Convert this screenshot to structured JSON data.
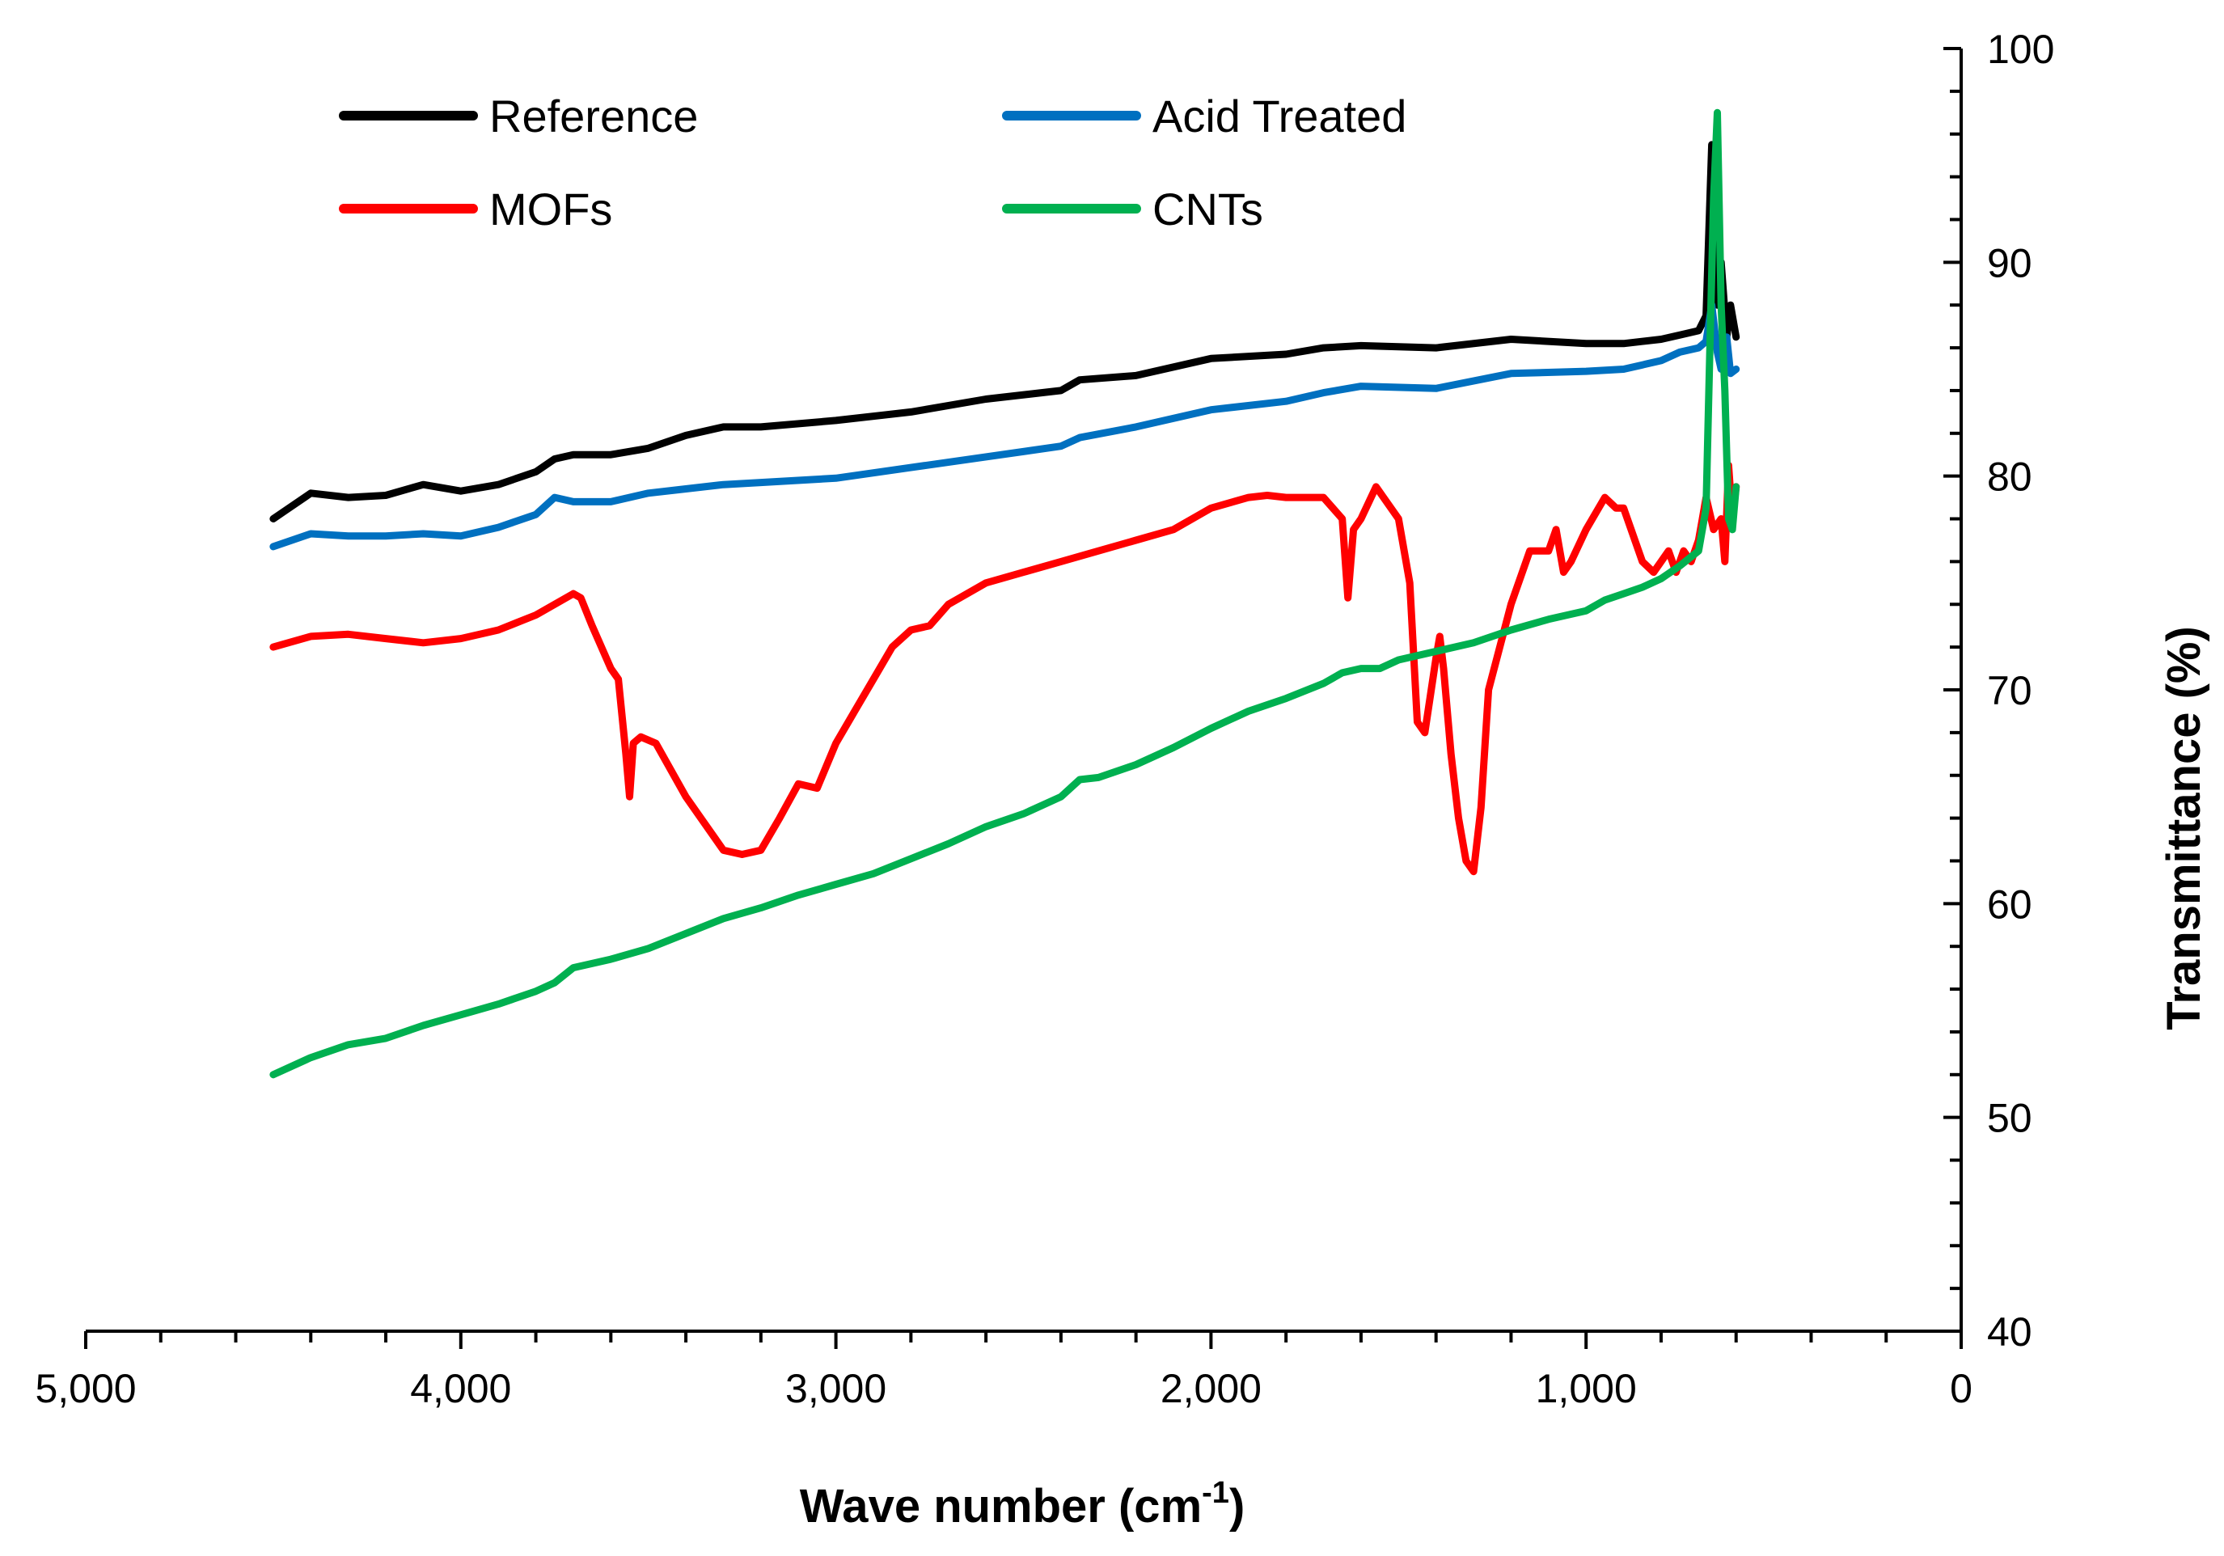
{
  "chart_data": {
    "type": "line",
    "xlabel": "Wave number (cm",
    "xlabel_sup": "-1",
    "xlabel_close": ")",
    "ylabel": "Transmittance (%)",
    "xlim": [
      5000,
      0
    ],
    "ylim": [
      40,
      100
    ],
    "x_ticks": [
      5000,
      4000,
      3000,
      2000,
      1000,
      0
    ],
    "x_tick_labels": [
      "5,000",
      "4,000",
      "3,000",
      "2,000",
      "1,000",
      "0"
    ],
    "y_ticks": [
      40,
      50,
      60,
      70,
      80,
      90,
      100
    ],
    "y_tick_labels": [
      "40",
      "50",
      "60",
      "70",
      "80",
      "90",
      "100"
    ],
    "y_axis_side": "right",
    "legend_position": "top-left",
    "series": [
      {
        "name": "Reference",
        "color": "#000000",
        "x": [
          4500,
          4400,
          4300,
          4200,
          4100,
          4000,
          3900,
          3800,
          3750,
          3700,
          3600,
          3500,
          3400,
          3300,
          3200,
          3000,
          2800,
          2600,
          2400,
          2350,
          2200,
          2000,
          1800,
          1700,
          1600,
          1400,
          1200,
          1000,
          900,
          800,
          750,
          700,
          680,
          665,
          650,
          640,
          625,
          615,
          600
        ],
        "values": [
          78.0,
          79.2,
          79.0,
          79.1,
          79.6,
          79.3,
          79.6,
          80.2,
          80.8,
          81.0,
          81.0,
          81.3,
          81.9,
          82.3,
          82.3,
          82.6,
          83.0,
          83.6,
          84.0,
          84.5,
          84.7,
          85.5,
          85.7,
          86.0,
          86.1,
          86.0,
          86.4,
          86.2,
          86.2,
          86.4,
          86.6,
          86.8,
          87.5,
          95.5,
          88.0,
          90.0,
          86.5,
          88.0,
          86.5
        ]
      },
      {
        "name": "Acid Treated",
        "color": "#0070C0",
        "x": [
          4500,
          4400,
          4300,
          4200,
          4100,
          4000,
          3900,
          3800,
          3750,
          3700,
          3600,
          3500,
          3400,
          3300,
          3200,
          3000,
          2800,
          2600,
          2400,
          2350,
          2200,
          2000,
          1800,
          1700,
          1600,
          1400,
          1200,
          1000,
          900,
          800,
          750,
          700,
          680,
          665,
          650,
          640,
          625,
          615,
          600
        ],
        "values": [
          76.7,
          77.3,
          77.2,
          77.2,
          77.3,
          77.2,
          77.6,
          78.2,
          79.0,
          78.8,
          78.8,
          79.2,
          79.4,
          79.6,
          79.7,
          79.9,
          80.4,
          80.9,
          81.4,
          81.8,
          82.3,
          83.1,
          83.5,
          83.9,
          84.2,
          84.1,
          84.8,
          84.9,
          85.0,
          85.4,
          85.8,
          86.0,
          86.3,
          88.0,
          85.8,
          85.0,
          86.5,
          84.8,
          85.0
        ]
      },
      {
        "name": "MOFs",
        "color": "#FF0000",
        "x": [
          4500,
          4400,
          4300,
          4200,
          4100,
          4000,
          3900,
          3800,
          3700,
          3680,
          3650,
          3600,
          3580,
          3560,
          3550,
          3540,
          3520,
          3480,
          3400,
          3300,
          3250,
          3200,
          3150,
          3100,
          3050,
          3000,
          2950,
          2900,
          2850,
          2800,
          2750,
          2700,
          2600,
          2500,
          2400,
          2300,
          2200,
          2100,
          2000,
          1900,
          1850,
          1800,
          1700,
          1650,
          1635,
          1620,
          1600,
          1560,
          1540,
          1500,
          1470,
          1450,
          1430,
          1400,
          1390,
          1380,
          1360,
          1340,
          1320,
          1300,
          1280,
          1260,
          1200,
          1150,
          1100,
          1080,
          1060,
          1040,
          1000,
          950,
          920,
          900,
          880,
          850,
          820,
          800,
          780,
          760,
          740,
          720,
          700,
          690,
          680,
          660,
          640,
          630,
          620,
          610,
          600
        ],
        "values": [
          72.0,
          72.5,
          72.6,
          72.4,
          72.2,
          72.4,
          72.8,
          73.5,
          74.5,
          74.3,
          73.0,
          71.0,
          70.5,
          67.0,
          65.0,
          67.5,
          67.8,
          67.5,
          65.0,
          62.5,
          62.3,
          62.5,
          64.0,
          65.6,
          65.4,
          67.5,
          69.0,
          70.5,
          72.0,
          72.8,
          73.0,
          74.0,
          75.0,
          75.5,
          76.0,
          76.5,
          77.0,
          77.5,
          78.5,
          79.0,
          79.1,
          79.0,
          79.0,
          78.0,
          74.3,
          77.5,
          78.0,
          79.5,
          79.0,
          78.0,
          75.0,
          68.5,
          68.0,
          71.5,
          72.5,
          71.0,
          67.0,
          64.0,
          62.0,
          61.5,
          64.5,
          70.0,
          74.0,
          76.5,
          76.5,
          77.5,
          75.5,
          76.0,
          77.5,
          79.0,
          78.5,
          78.5,
          77.5,
          76.0,
          75.5,
          76.0,
          76.5,
          75.5,
          76.5,
          76.0,
          77.0,
          78.0,
          79.0,
          77.5,
          78.0,
          76.0,
          80.5,
          78.0,
          79.5
        ]
      },
      {
        "name": "CNTs",
        "color": "#00B050",
        "x": [
          4500,
          4400,
          4300,
          4200,
          4100,
          4000,
          3900,
          3800,
          3750,
          3700,
          3600,
          3500,
          3400,
          3300,
          3200,
          3100,
          3000,
          2900,
          2800,
          2700,
          2600,
          2500,
          2400,
          2350,
          2300,
          2200,
          2100,
          2000,
          1900,
          1800,
          1700,
          1650,
          1600,
          1550,
          1500,
          1400,
          1300,
          1200,
          1100,
          1000,
          950,
          900,
          850,
          800,
          750,
          700,
          680,
          670,
          660,
          650,
          640,
          630,
          620,
          610,
          600
        ],
        "values": [
          52.0,
          52.8,
          53.4,
          53.7,
          54.3,
          54.8,
          55.3,
          55.9,
          56.3,
          57.0,
          57.4,
          57.9,
          58.6,
          59.3,
          59.8,
          60.4,
          60.9,
          61.4,
          62.1,
          62.8,
          63.6,
          64.2,
          65.0,
          65.8,
          65.9,
          66.5,
          67.3,
          68.2,
          69.0,
          69.6,
          70.3,
          70.8,
          71.0,
          71.0,
          71.4,
          71.8,
          72.2,
          72.8,
          73.3,
          73.7,
          74.2,
          74.5,
          74.8,
          75.2,
          75.8,
          76.5,
          78.5,
          86.0,
          93.0,
          97.0,
          88.0,
          84.0,
          78.0,
          77.5,
          79.5
        ]
      }
    ]
  }
}
